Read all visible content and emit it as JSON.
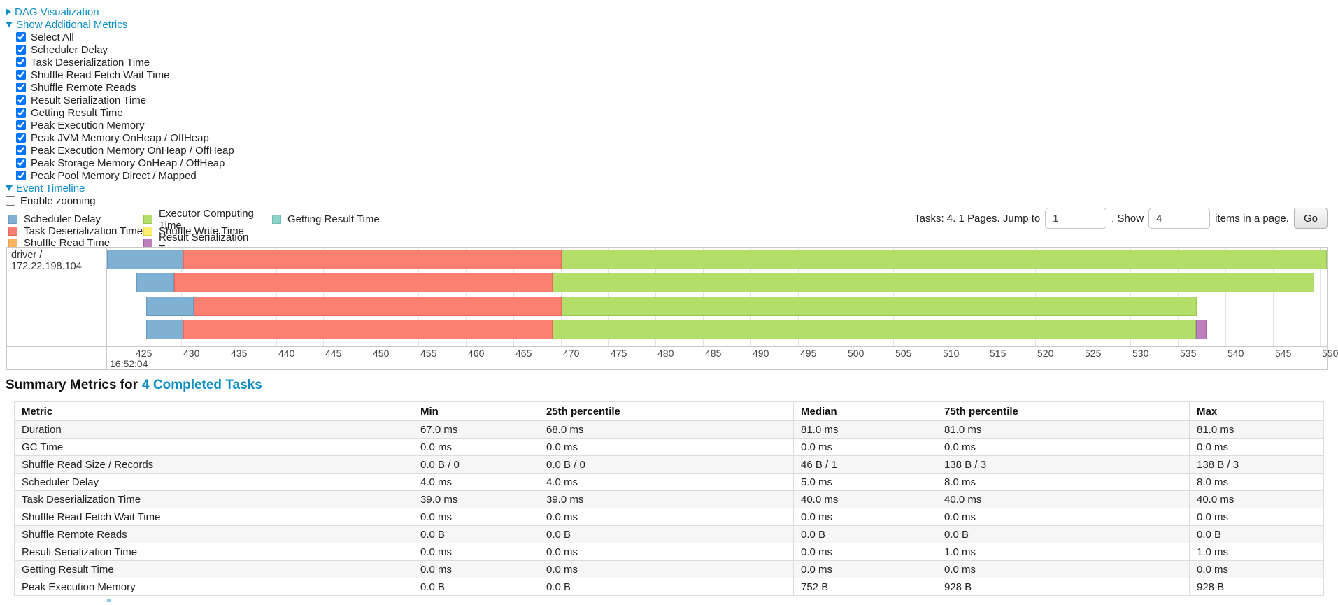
{
  "colors": {
    "link": "#0b8dc8"
  },
  "toggles": {
    "dag": "DAG Visualization",
    "metrics": "Show Additional Metrics",
    "timeline": "Event Timeline"
  },
  "metric_checkboxes": [
    {
      "label": "Select All",
      "checked": true
    },
    {
      "label": "Scheduler Delay",
      "checked": true
    },
    {
      "label": "Task Deserialization Time",
      "checked": true
    },
    {
      "label": "Shuffle Read Fetch Wait Time",
      "checked": true
    },
    {
      "label": "Shuffle Remote Reads",
      "checked": true
    },
    {
      "label": "Result Serialization Time",
      "checked": true
    },
    {
      "label": "Getting Result Time",
      "checked": true
    },
    {
      "label": "Peak Execution Memory",
      "checked": true
    },
    {
      "label": "Peak JVM Memory OnHeap / OffHeap",
      "checked": true
    },
    {
      "label": "Peak Execution Memory OnHeap / OffHeap",
      "checked": true
    },
    {
      "label": "Peak Storage Memory OnHeap / OffHeap",
      "checked": true
    },
    {
      "label": "Peak Pool Memory Direct / Mapped",
      "checked": true
    }
  ],
  "enable_zooming": {
    "label": "Enable zooming",
    "checked": false
  },
  "legend": {
    "columns": [
      [
        {
          "label": "Scheduler Delay",
          "color": "#80B1D3",
          "border": "#6898c0"
        },
        {
          "label": "Task Deserialization Time",
          "color": "#FB8072",
          "border": "#e8685a"
        },
        {
          "label": "Shuffle Read Time",
          "color": "#FDB462",
          "border": "#eb9c44"
        }
      ],
      [
        {
          "label": "Executor Computing Time",
          "color": "#B3DE69",
          "border": "#99c74e"
        },
        {
          "label": "Shuffle Write Time",
          "color": "#FFED6F",
          "border": "#e6d44f"
        },
        {
          "label": "Result Serialization Time",
          "color": "#BC80BD",
          "border": "#a565a6"
        }
      ],
      [
        {
          "label": "Getting Result Time",
          "color": "#8DD3C7",
          "border": "#6fbdb0"
        }
      ]
    ]
  },
  "pagination": {
    "prefix": "Tasks: 4. 1 Pages. Jump to",
    "jump_value": "1",
    "middle": ". Show",
    "show_value": "4",
    "suffix": "items in a page.",
    "go": "Go"
  },
  "chart_data": {
    "type": "timeline",
    "row_label": "driver / 172.22.198.104",
    "axis": {
      "domain_min": 422.2,
      "domain_max": 550.7,
      "tick_min": 425,
      "tick_max": 550,
      "tick_step": 5,
      "start_time_label": "16:52:04"
    },
    "segment_colors": {
      "scheduler-delay": {
        "fill": "#80B1D3",
        "border": "#6898c0"
      },
      "task-deserialization-time": {
        "fill": "#FB8072",
        "border": "#e8685a"
      },
      "executor-computing-time": {
        "fill": "#B3DE69",
        "border": "#99c74e"
      },
      "result-serialization-time": {
        "fill": "#BC80BD",
        "border": "#a565a6"
      }
    },
    "tasks": [
      {
        "segments": [
          [
            "scheduler-delay",
            422.2,
            430.2
          ],
          [
            "task-deserialization-time",
            430.2,
            470.1
          ],
          [
            "executor-computing-time",
            470.1,
            550.7
          ]
        ]
      },
      {
        "segments": [
          [
            "scheduler-delay",
            425.3,
            429.3
          ],
          [
            "task-deserialization-time",
            429.3,
            469.1
          ],
          [
            "executor-computing-time",
            469.1,
            549.4
          ]
        ]
      },
      {
        "segments": [
          [
            "scheduler-delay",
            426.3,
            431.3
          ],
          [
            "task-deserialization-time",
            431.3,
            470.1
          ],
          [
            "executor-computing-time",
            470.1,
            537.0
          ]
        ]
      },
      {
        "segments": [
          [
            "scheduler-delay",
            426.3,
            430.2
          ],
          [
            "task-deserialization-time",
            430.2,
            469.1
          ],
          [
            "executor-computing-time",
            469.1,
            536.9
          ],
          [
            "result-serialization-time",
            536.9,
            538.0
          ]
        ]
      }
    ]
  },
  "summary": {
    "title": "Summary Metrics for",
    "title_link": "4 Completed Tasks",
    "headers": [
      "Metric",
      "Min",
      "25th percentile",
      "Median",
      "75th percentile",
      "Max"
    ],
    "rows": [
      [
        "Duration",
        "67.0 ms",
        "68.0 ms",
        "81.0 ms",
        "81.0 ms",
        "81.0 ms"
      ],
      [
        "GC Time",
        "0.0 ms",
        "0.0 ms",
        "0.0 ms",
        "0.0 ms",
        "0.0 ms"
      ],
      [
        "Shuffle Read Size / Records",
        "0.0 B / 0",
        "0.0 B / 0",
        "46 B / 1",
        "138 B / 3",
        "138 B / 3"
      ],
      [
        "Scheduler Delay",
        "4.0 ms",
        "4.0 ms",
        "5.0 ms",
        "8.0 ms",
        "8.0 ms"
      ],
      [
        "Task Deserialization Time",
        "39.0 ms",
        "39.0 ms",
        "40.0 ms",
        "40.0 ms",
        "40.0 ms"
      ],
      [
        "Shuffle Read Fetch Wait Time",
        "0.0 ms",
        "0.0 ms",
        "0.0 ms",
        "0.0 ms",
        "0.0 ms"
      ],
      [
        "Shuffle Remote Reads",
        "0.0 B",
        "0.0 B",
        "0.0 B",
        "0.0 B",
        "0.0 B"
      ],
      [
        "Result Serialization Time",
        "0.0 ms",
        "0.0 ms",
        "0.0 ms",
        "1.0 ms",
        "1.0 ms"
      ],
      [
        "Getting Result Time",
        "0.0 ms",
        "0.0 ms",
        "0.0 ms",
        "0.0 ms",
        "0.0 ms"
      ],
      [
        "Peak Execution Memory",
        "0.0 B",
        "0.0 B",
        "752 B",
        "928 B",
        "928 B"
      ]
    ]
  }
}
